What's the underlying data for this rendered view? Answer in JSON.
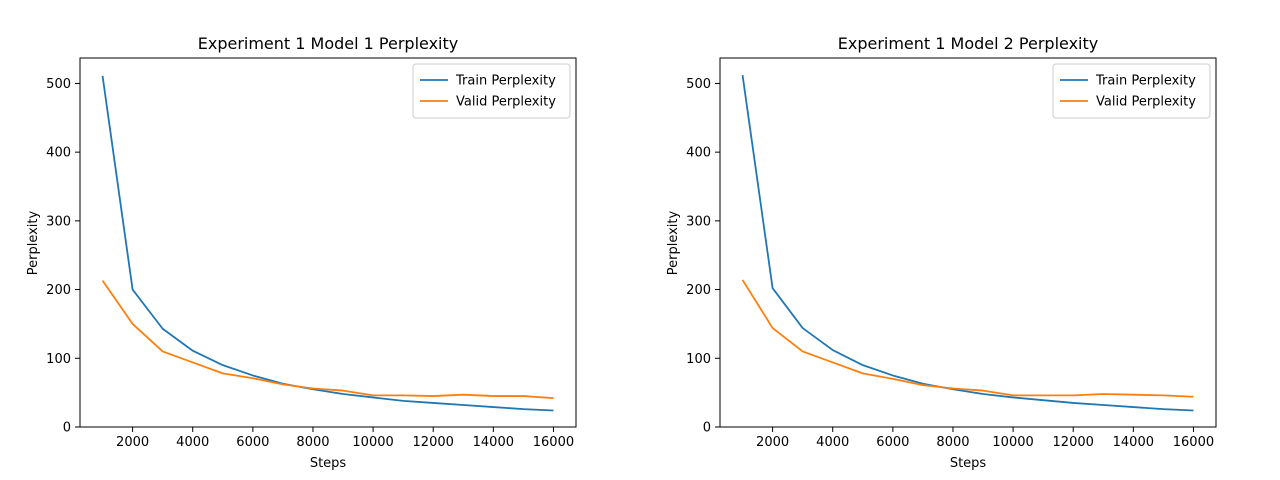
{
  "chart_data": [
    {
      "type": "line",
      "title": "Experiment 1 Model 1 Perplexity",
      "xlabel": "Steps",
      "ylabel": "Perplexity",
      "xlim": [
        250,
        16750
      ],
      "ylim": [
        0,
        537
      ],
      "xticks": [
        2000,
        4000,
        6000,
        8000,
        10000,
        12000,
        14000,
        16000
      ],
      "yticks": [
        0,
        100,
        200,
        300,
        400,
        500
      ],
      "legend_position": "top-right",
      "x": [
        1000,
        2000,
        3000,
        4000,
        5000,
        6000,
        7000,
        8000,
        9000,
        10000,
        11000,
        12000,
        13000,
        14000,
        15000,
        16000
      ],
      "series": [
        {
          "name": "Train Perplexity",
          "color": "#1f77b4",
          "values": [
            511,
            200,
            143,
            111,
            90,
            75,
            63,
            55,
            48,
            43,
            38,
            35,
            32,
            29,
            26,
            24
          ]
        },
        {
          "name": "Valid Perplexity",
          "color": "#ff7f0e",
          "values": [
            213,
            150,
            110,
            94,
            78,
            71,
            62,
            56,
            53,
            46,
            46,
            45,
            47,
            45,
            45,
            42
          ]
        }
      ]
    },
    {
      "type": "line",
      "title": "Experiment 1 Model 2 Perplexity",
      "xlabel": "Steps",
      "ylabel": "Perplexity",
      "xlim": [
        250,
        16750
      ],
      "ylim": [
        0,
        537
      ],
      "xticks": [
        2000,
        4000,
        6000,
        8000,
        10000,
        12000,
        14000,
        16000
      ],
      "yticks": [
        0,
        100,
        200,
        300,
        400,
        500
      ],
      "legend_position": "top-right",
      "x": [
        1000,
        2000,
        3000,
        4000,
        5000,
        6000,
        7000,
        8000,
        9000,
        10000,
        11000,
        12000,
        13000,
        14000,
        15000,
        16000
      ],
      "series": [
        {
          "name": "Train Perplexity",
          "color": "#1f77b4",
          "values": [
            512,
            202,
            144,
            112,
            90,
            75,
            63,
            55,
            48,
            43,
            39,
            35,
            32,
            29,
            26,
            24
          ]
        },
        {
          "name": "Valid Perplexity",
          "color": "#ff7f0e",
          "values": [
            214,
            144,
            110,
            94,
            78,
            70,
            61,
            56,
            53,
            46,
            46,
            46,
            48,
            47,
            46,
            44
          ]
        }
      ]
    }
  ]
}
